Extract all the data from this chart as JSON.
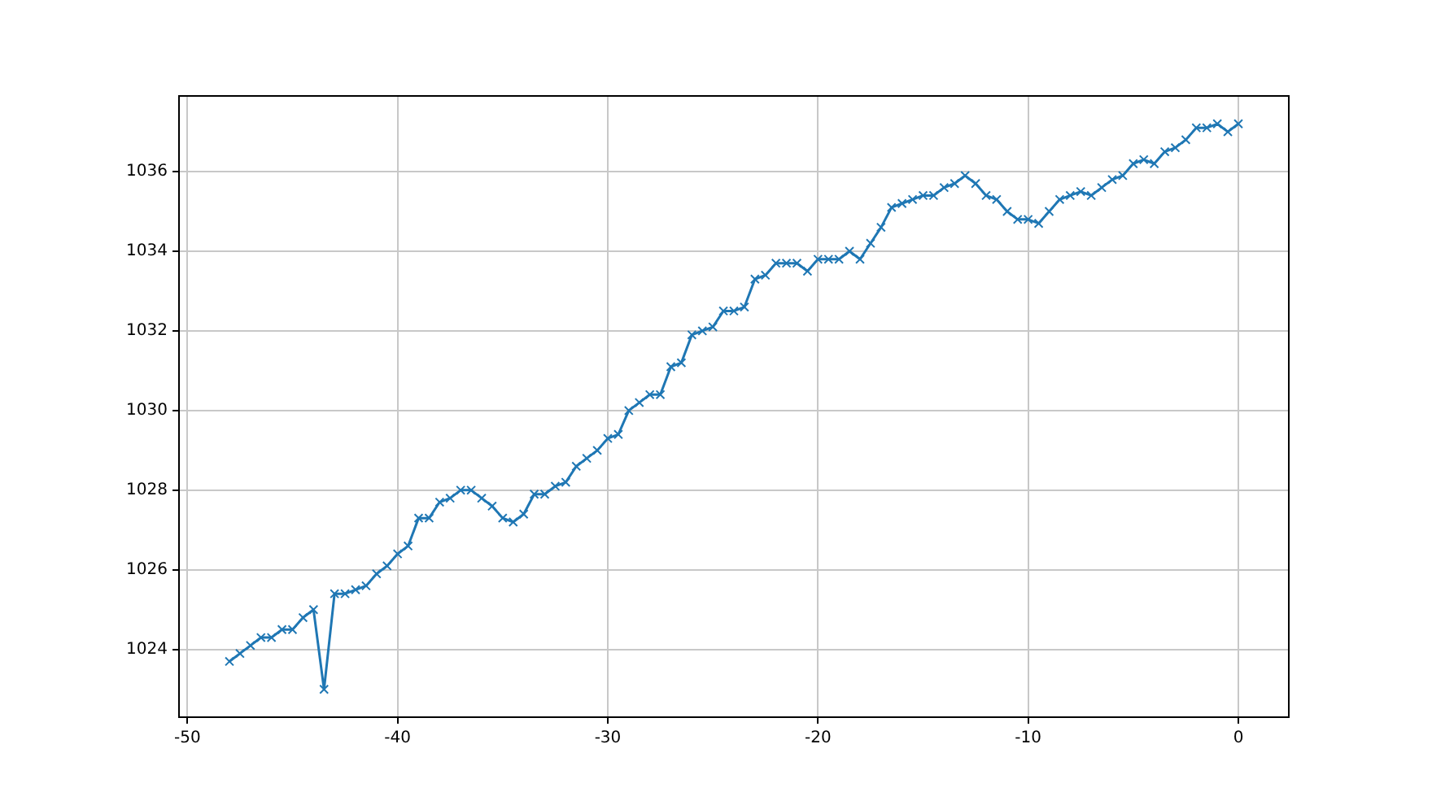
{
  "chart_data": {
    "type": "line",
    "marker": "cross",
    "grid": true,
    "xlim": [
      -50.4,
      2.4
    ],
    "ylim": [
      1022.3,
      1037.9
    ],
    "xticks": [
      -50,
      -40,
      -30,
      -20,
      -10,
      0
    ],
    "yticks": [
      1024,
      1026,
      1028,
      1030,
      1032,
      1034,
      1036
    ],
    "series": [
      {
        "color": "#1f77b4",
        "x": [
          -48,
          -47.5,
          -47,
          -46.5,
          -46,
          -45.5,
          -45,
          -44.5,
          -44,
          -43.5,
          -43,
          -42.5,
          -42,
          -41.5,
          -41,
          -40.5,
          -40,
          -39.5,
          -39,
          -38.5,
          -38,
          -37.5,
          -37,
          -36.5,
          -36,
          -35.5,
          -35,
          -34.5,
          -34,
          -33.5,
          -33,
          -32.5,
          -32,
          -31.5,
          -31,
          -30.5,
          -30,
          -29.5,
          -29,
          -28.5,
          -28,
          -27.5,
          -27,
          -26.5,
          -26,
          -25.5,
          -25,
          -24.5,
          -24,
          -23.5,
          -23,
          -22.5,
          -22,
          -21.5,
          -21,
          -20.5,
          -20,
          -19.5,
          -19,
          -18.5,
          -18,
          -17.5,
          -17,
          -16.5,
          -16,
          -15.5,
          -15,
          -14.5,
          -14,
          -13.5,
          -13,
          -12.5,
          -12,
          -11.5,
          -11,
          -10.5,
          -10,
          -9.5,
          -9,
          -8.5,
          -8,
          -7.5,
          -7,
          -6.5,
          -6,
          -5.5,
          -5,
          -4.5,
          -4,
          -3.5,
          -3,
          -2.5,
          -2,
          -1.5,
          -1,
          -0.5,
          0
        ],
        "values": [
          1023.7,
          1023.9,
          1024.1,
          1024.3,
          1024.3,
          1024.5,
          1024.5,
          1024.8,
          1025.0,
          1023.0,
          1025.4,
          1025.4,
          1025.5,
          1025.6,
          1025.9,
          1026.1,
          1026.4,
          1026.6,
          1027.3,
          1027.3,
          1027.7,
          1027.8,
          1028.0,
          1028.0,
          1027.8,
          1027.6,
          1027.3,
          1027.2,
          1027.4,
          1027.9,
          1027.9,
          1028.1,
          1028.2,
          1028.6,
          1028.8,
          1029.0,
          1029.3,
          1029.4,
          1030.0,
          1030.2,
          1030.4,
          1030.4,
          1031.1,
          1031.2,
          1031.9,
          1032.0,
          1032.1,
          1032.5,
          1032.5,
          1032.6,
          1033.3,
          1033.4,
          1033.7,
          1033.7,
          1033.7,
          1033.5,
          1033.8,
          1033.8,
          1033.8,
          1034.0,
          1033.8,
          1034.2,
          1034.6,
          1035.1,
          1035.2,
          1035.3,
          1035.4,
          1035.4,
          1035.6,
          1035.7,
          1035.9,
          1035.7,
          1035.4,
          1035.3,
          1035.0,
          1034.8,
          1034.8,
          1034.7,
          1035.0,
          1035.3,
          1035.4,
          1035.5,
          1035.4,
          1035.6,
          1035.8,
          1035.9,
          1036.2,
          1036.3,
          1036.2,
          1036.5,
          1036.6,
          1036.8,
          1037.1,
          1037.1,
          1037.2,
          1037.0,
          1037.2
        ]
      }
    ]
  }
}
